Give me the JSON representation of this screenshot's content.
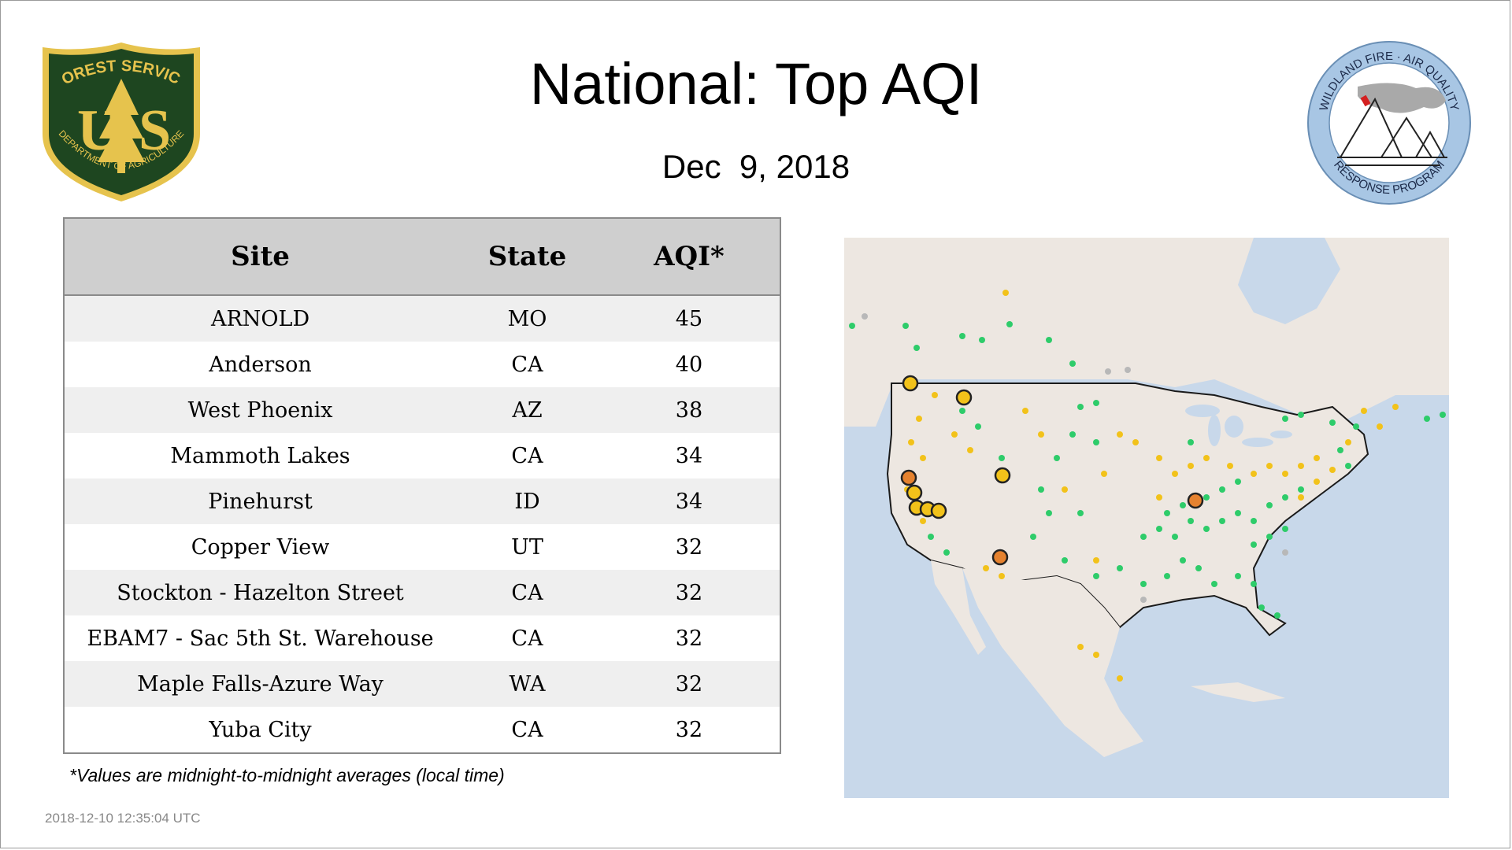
{
  "title": "National: Top AQI",
  "date": "Dec  9, 2018",
  "usfs_logo": {
    "top_text": "FOREST SERVICE",
    "left_letter": "U",
    "right_letter": "S",
    "bottom_text": "DEPARTMENT OF AGRICULTURE",
    "colors": {
      "shield": "#1e4620",
      "trim": "#e6c34d"
    }
  },
  "wildfire_logo": {
    "top_text": "WILDLAND FIRE · AIR QUALITY",
    "bottom_text": "RESPONSE PROGRAM",
    "colors": {
      "ring": "#a8c6e4",
      "flag": "#d42020"
    }
  },
  "table": {
    "headers": [
      "Site",
      "State",
      "AQI*"
    ],
    "rows": [
      {
        "site": "ARNOLD",
        "state": "MO",
        "aqi": "45"
      },
      {
        "site": "Anderson",
        "state": "CA",
        "aqi": "40"
      },
      {
        "site": "West Phoenix",
        "state": "AZ",
        "aqi": "38"
      },
      {
        "site": "Mammoth Lakes",
        "state": "CA",
        "aqi": "34"
      },
      {
        "site": "Pinehurst",
        "state": "ID",
        "aqi": "34"
      },
      {
        "site": "Copper View",
        "state": "UT",
        "aqi": "32"
      },
      {
        "site": "Stockton - Hazelton Street",
        "state": "CA",
        "aqi": "32"
      },
      {
        "site": "EBAM7 - Sac 5th St. Warehouse",
        "state": "CA",
        "aqi": "32"
      },
      {
        "site": "Maple Falls-Azure Way",
        "state": "WA",
        "aqi": "32"
      },
      {
        "site": "Yuba City",
        "state": "CA",
        "aqi": "32"
      }
    ]
  },
  "footnote": "*Values are midnight-to-midnight averages (local time)",
  "timestamp": "2018-12-10 12:35:04 UTC",
  "map": {
    "colors": {
      "water": "#c8d8ea",
      "land": "#ede7e1",
      "good": "#2ecc6a",
      "moderate": "#f2c21a",
      "usg": "#e5822f",
      "nodata": "#b8b8b8"
    }
  }
}
